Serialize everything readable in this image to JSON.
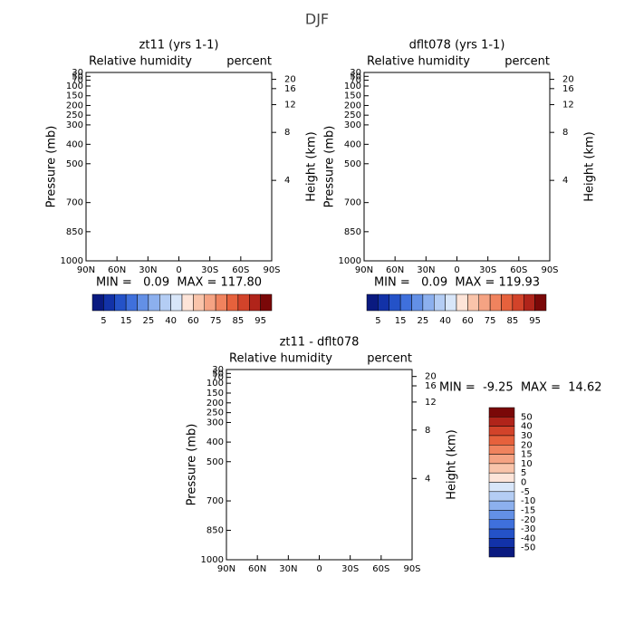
{
  "title": "DJF",
  "panels": [
    {
      "title": "zt11 (yrs 1-1)",
      "subtitle_left": "Relative humidity",
      "subtitle_right": "percent",
      "y_label": "Pressure (mb)",
      "y2_label": "Height (km)",
      "yticks": [
        30,
        50,
        70,
        100,
        150,
        200,
        250,
        300,
        400,
        500,
        700,
        850,
        1000
      ],
      "y2ticks": [
        20,
        16,
        12,
        8,
        4
      ],
      "xticks": [
        "90N",
        "60N",
        "30N",
        "0",
        "30S",
        "60S",
        "90S"
      ],
      "stats": "MIN =   0.09  MAX = 117.80"
    },
    {
      "title": "dflt078 (yrs 1-1)",
      "subtitle_left": "Relative humidity",
      "subtitle_right": "percent",
      "y_label": "Pressure (mb)",
      "y2_label": "Height (km)",
      "yticks": [
        30,
        50,
        70,
        100,
        150,
        200,
        250,
        300,
        400,
        500,
        700,
        850,
        1000
      ],
      "y2ticks": [
        20,
        16,
        12,
        8,
        4
      ],
      "xticks": [
        "90N",
        "60N",
        "30N",
        "0",
        "30S",
        "60S",
        "90S"
      ],
      "stats": "MIN =   0.09  MAX = 119.93"
    },
    {
      "title": "zt11 - dflt078",
      "subtitle_left": "Relative humidity",
      "subtitle_right": "percent",
      "y_label": "Pressure (mb)",
      "y2_label": "Height (km)",
      "yticks": [
        30,
        50,
        70,
        100,
        150,
        200,
        250,
        300,
        400,
        500,
        700,
        850,
        1000
      ],
      "y2ticks": [
        20,
        16,
        12,
        8,
        4
      ],
      "xticks": [
        "90N",
        "60N",
        "30N",
        "0",
        "30S",
        "60S",
        "90S"
      ],
      "stats": "MIN =  -9.25  MAX =  14.62"
    }
  ],
  "colorbars": [
    {
      "labels": [
        5,
        15,
        25,
        40,
        60,
        75,
        85,
        95
      ],
      "colors": [
        "#0a1a80",
        "#1232a8",
        "#2452c8",
        "#3f70dc",
        "#6390e6",
        "#8cb0ee",
        "#b4cdf4",
        "#d8e6f9",
        "#fde4d8",
        "#f9c4aa",
        "#f5a383",
        "#f0835e",
        "#e6613c",
        "#d2432a",
        "#b0241a",
        "#7a0808"
      ]
    },
    {
      "labels": [
        50,
        40,
        30,
        20,
        15,
        10,
        5,
        0,
        -5,
        -10,
        -15,
        -20,
        -30,
        -40,
        -50
      ],
      "colors": [
        "#7a0808",
        "#b0241a",
        "#d2432a",
        "#e6613c",
        "#f0835e",
        "#f5a383",
        "#f9c4aa",
        "#fde4d8",
        "#d8e6f9",
        "#b4cdf4",
        "#8cb0ee",
        "#6390e6",
        "#3f70dc",
        "#2452c8",
        "#1232a8",
        "#0a1a80"
      ]
    }
  ]
}
